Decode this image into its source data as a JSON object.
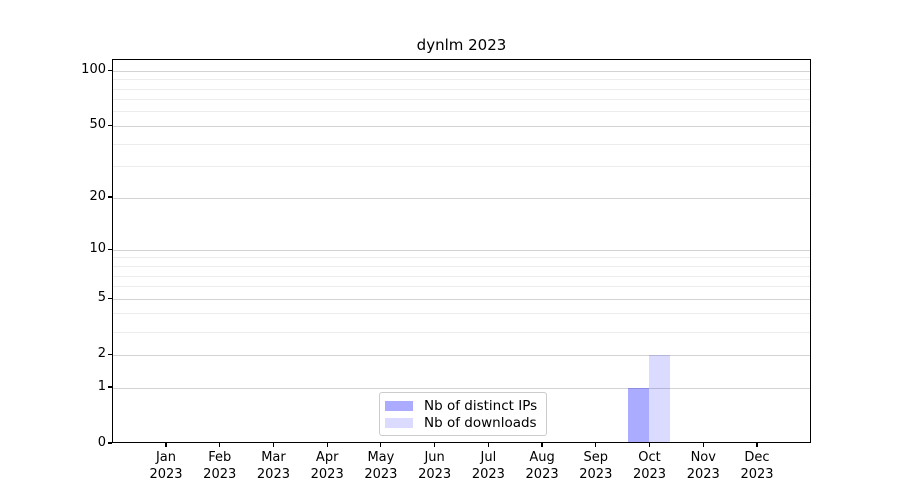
{
  "chart_data": {
    "type": "bar",
    "title": "dynlm 2023",
    "categories": [
      "Jan",
      "Feb",
      "Mar",
      "Apr",
      "May",
      "Jun",
      "Jul",
      "Aug",
      "Sep",
      "Oct",
      "Nov",
      "Dec"
    ],
    "category_year": "2023",
    "series": [
      {
        "name": "Nb of distinct IPs",
        "color": "rgba(0,0,255,0.33)",
        "values": [
          0,
          0,
          0,
          0,
          0,
          0,
          0,
          0,
          0,
          1,
          0,
          0
        ]
      },
      {
        "name": "Nb of downloads",
        "color": "rgba(0,0,255,0.14)",
        "values": [
          0,
          0,
          0,
          0,
          0,
          0,
          0,
          0,
          0,
          2,
          0,
          0
        ]
      }
    ],
    "y_axis": {
      "scale": "log1p",
      "ticks": [
        0,
        1,
        2,
        5,
        10,
        20,
        50,
        100
      ],
      "minor_gridlines": [
        3,
        4,
        6,
        7,
        8,
        9,
        30,
        40,
        60,
        70,
        80,
        90
      ],
      "max": 115
    },
    "legend": {
      "position": "bottom-center",
      "entries": [
        "Nb of distinct IPs",
        "Nb of downloads"
      ]
    },
    "grid": {
      "major_color": "#d3d3d3",
      "minor_color": "#ececec"
    },
    "spine_color": "#000000"
  }
}
